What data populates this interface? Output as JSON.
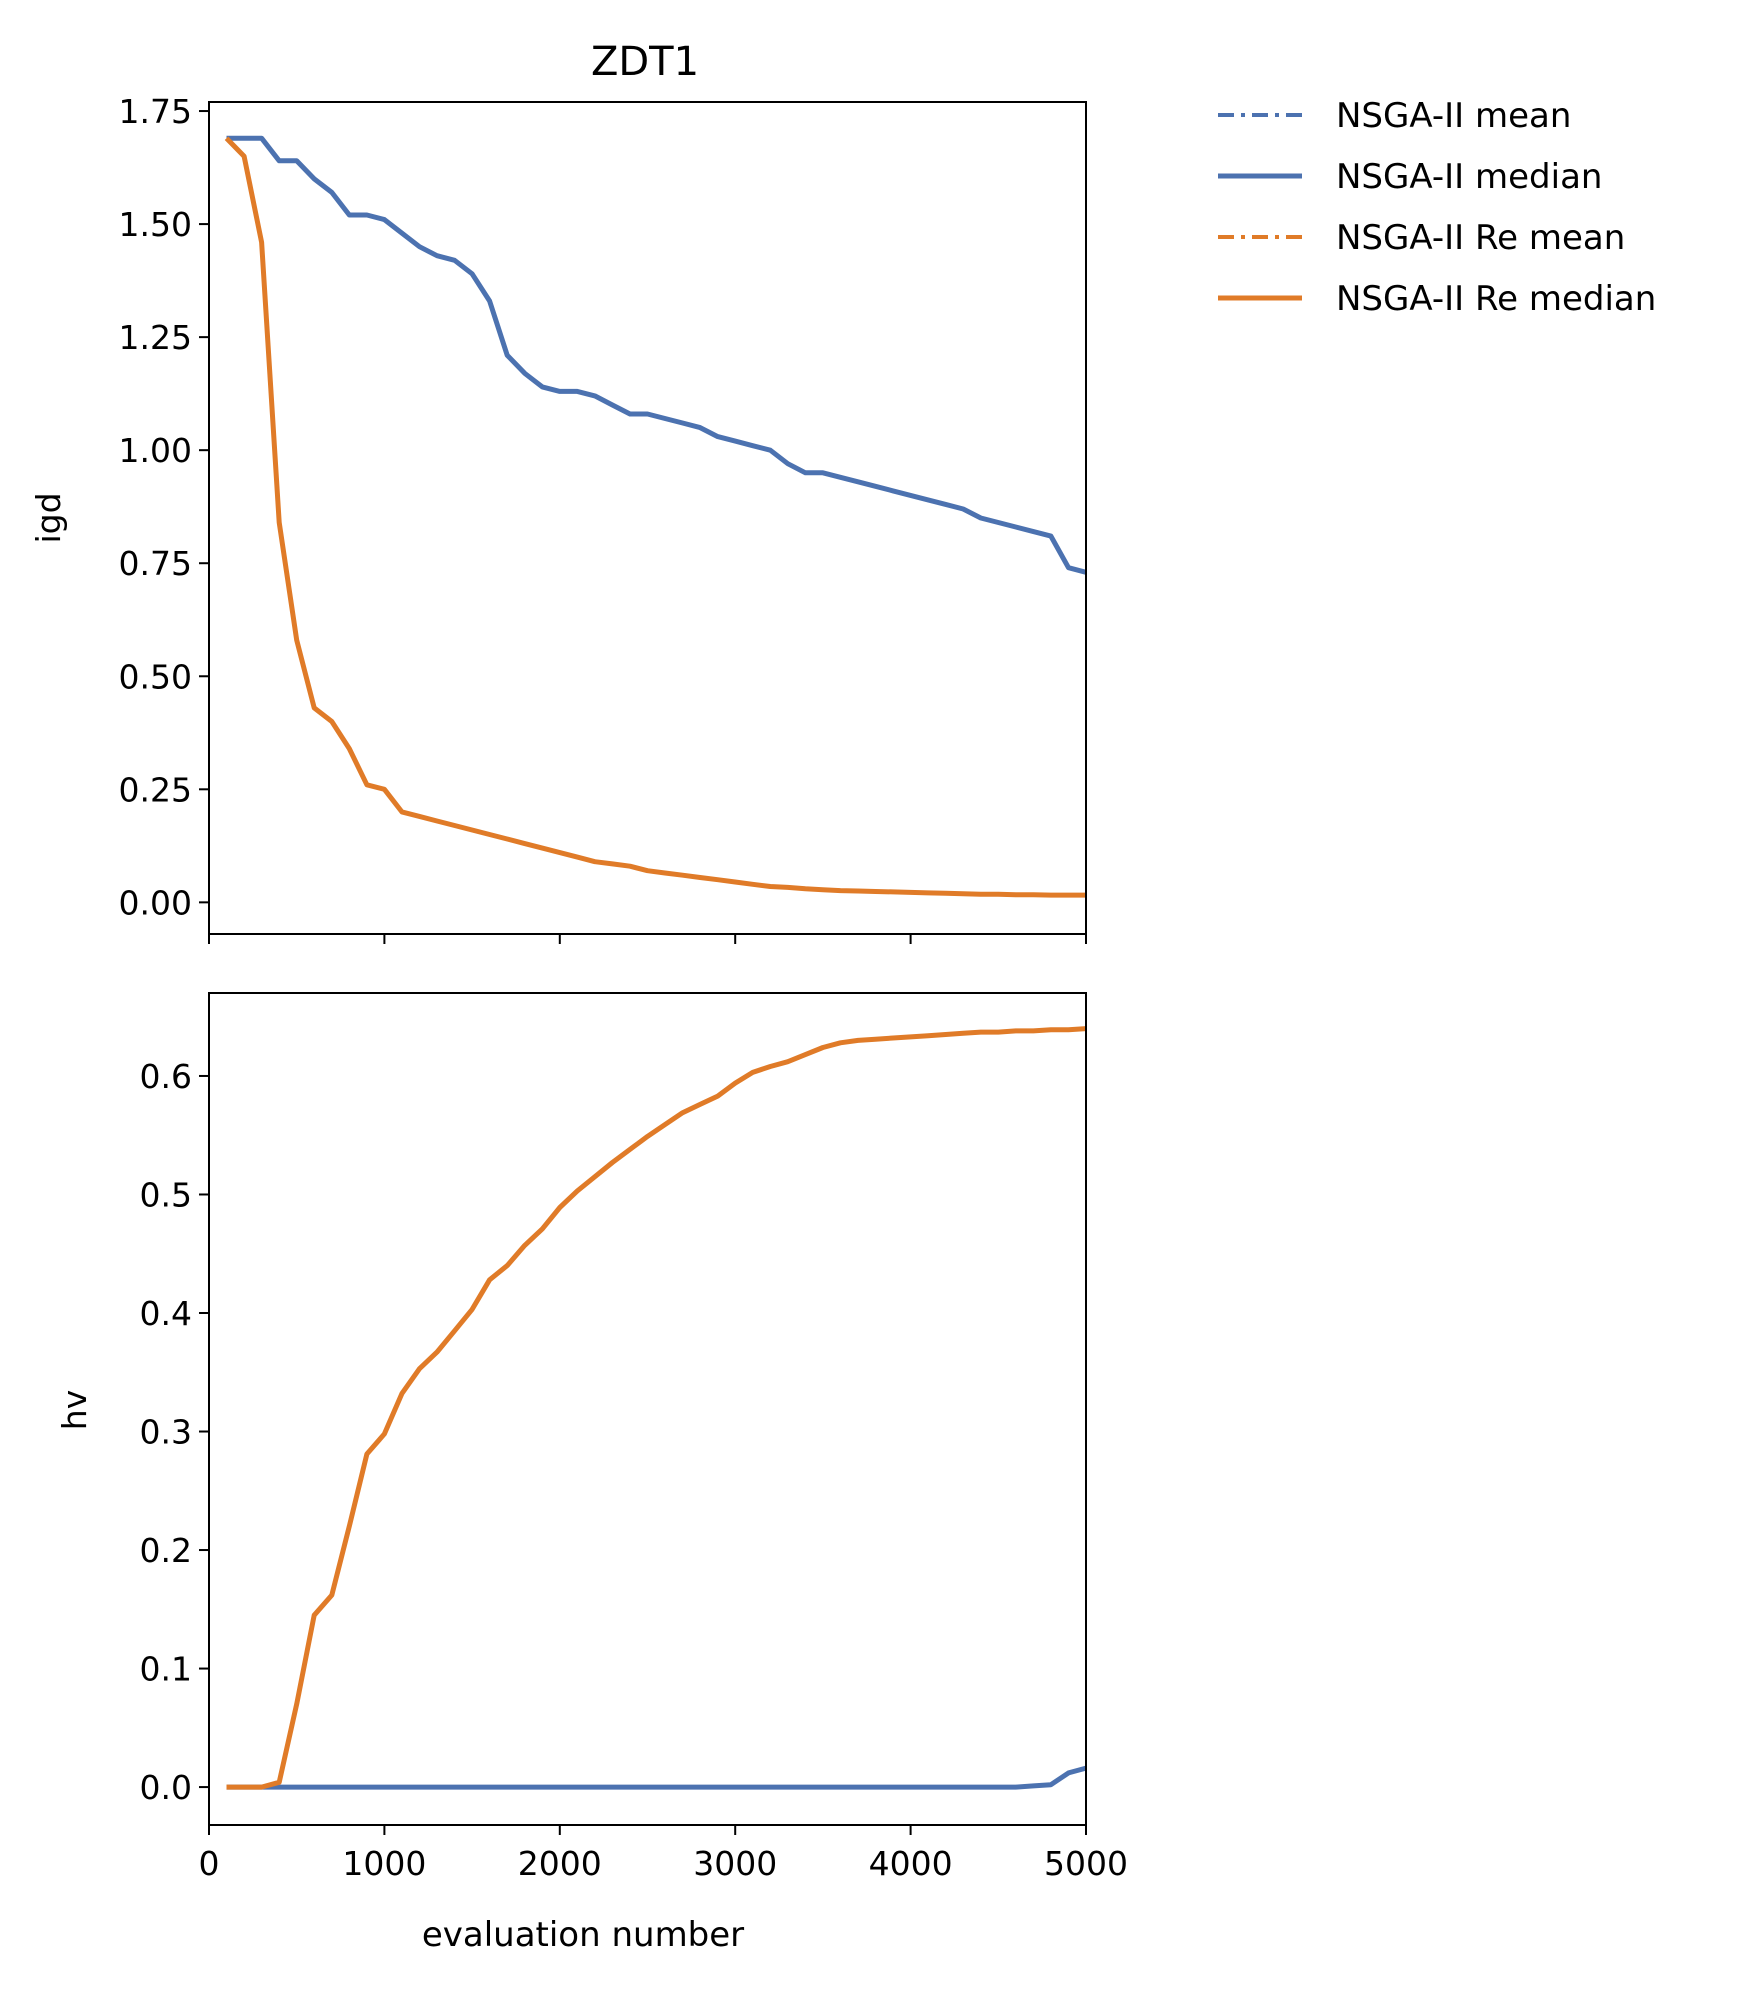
{
  "chart_data": [
    {
      "type": "line",
      "title": "ZDT1",
      "xlabel": "",
      "ylabel": "igd",
      "xlim": [
        0,
        5000
      ],
      "ylim": [
        -0.07,
        1.77
      ],
      "xticks": [
        0,
        1000,
        2000,
        3000,
        4000,
        5000
      ],
      "xtick_labels_shown": false,
      "yticks": [
        0.0,
        0.25,
        0.5,
        0.75,
        1.0,
        1.25,
        1.5,
        1.75
      ],
      "ytick_labels": [
        "0.00",
        "0.25",
        "0.50",
        "0.75",
        "1.00",
        "1.25",
        "1.50",
        "1.75"
      ],
      "grid": false,
      "series": [
        {
          "name": "NSGA-II median",
          "color": "#4c72b0",
          "x": [
            100,
            200,
            300,
            400,
            500,
            600,
            700,
            800,
            900,
            1000,
            1100,
            1200,
            1300,
            1400,
            1500,
            1600,
            1700,
            1800,
            1900,
            2000,
            2100,
            2200,
            2300,
            2400,
            2500,
            2600,
            2700,
            2800,
            2900,
            3000,
            3100,
            3200,
            3300,
            3400,
            3500,
            3600,
            3700,
            3800,
            3900,
            4000,
            4100,
            4200,
            4300,
            4400,
            4500,
            4600,
            4700,
            4800,
            4900,
            5000
          ],
          "y": [
            1.69,
            1.69,
            1.69,
            1.64,
            1.64,
            1.6,
            1.57,
            1.52,
            1.52,
            1.51,
            1.48,
            1.45,
            1.43,
            1.42,
            1.39,
            1.33,
            1.21,
            1.17,
            1.14,
            1.13,
            1.13,
            1.12,
            1.1,
            1.08,
            1.08,
            1.07,
            1.06,
            1.05,
            1.03,
            1.02,
            1.01,
            1.0,
            0.97,
            0.95,
            0.95,
            0.94,
            0.93,
            0.92,
            0.91,
            0.9,
            0.89,
            0.88,
            0.87,
            0.85,
            0.84,
            0.83,
            0.82,
            0.81,
            0.74,
            0.73
          ]
        },
        {
          "name": "NSGA-II Re median",
          "color": "#e07b28",
          "x": [
            100,
            200,
            300,
            400,
            500,
            600,
            700,
            800,
            900,
            1000,
            1100,
            1200,
            1300,
            1400,
            1500,
            1600,
            1700,
            1800,
            1900,
            2000,
            2100,
            2200,
            2300,
            2400,
            2500,
            2600,
            2700,
            2800,
            2900,
            3000,
            3100,
            3200,
            3300,
            3400,
            3500,
            3600,
            3700,
            3800,
            3900,
            4000,
            4100,
            4200,
            4300,
            4400,
            4500,
            4600,
            4700,
            4800,
            4900,
            5000
          ],
          "y": [
            1.69,
            1.65,
            1.46,
            0.84,
            0.58,
            0.43,
            0.4,
            0.34,
            0.26,
            0.25,
            0.2,
            0.19,
            0.18,
            0.17,
            0.16,
            0.15,
            0.14,
            0.13,
            0.12,
            0.11,
            0.1,
            0.09,
            0.085,
            0.08,
            0.07,
            0.065,
            0.06,
            0.055,
            0.05,
            0.045,
            0.04,
            0.035,
            0.033,
            0.03,
            0.028,
            0.026,
            0.025,
            0.024,
            0.023,
            0.022,
            0.021,
            0.02,
            0.019,
            0.018,
            0.018,
            0.017,
            0.017,
            0.016,
            0.016,
            0.016
          ]
        }
      ]
    },
    {
      "type": "line",
      "title": "",
      "xlabel": "evaluation number",
      "ylabel": "hv",
      "xlim": [
        0,
        5000
      ],
      "ylim": [
        -0.032,
        0.67
      ],
      "xticks": [
        0,
        1000,
        2000,
        3000,
        4000,
        5000
      ],
      "xtick_labels": [
        "0",
        "1000",
        "2000",
        "3000",
        "4000",
        "5000"
      ],
      "yticks": [
        0.0,
        0.1,
        0.2,
        0.3,
        0.4,
        0.5,
        0.6
      ],
      "ytick_labels": [
        "0.0",
        "0.1",
        "0.2",
        "0.3",
        "0.4",
        "0.5",
        "0.6"
      ],
      "grid": false,
      "series": [
        {
          "name": "NSGA-II median",
          "color": "#4c72b0",
          "x": [
            100,
            200,
            300,
            400,
            500,
            600,
            700,
            800,
            900,
            1000,
            1100,
            1200,
            1300,
            1400,
            1500,
            1600,
            1700,
            1800,
            1900,
            2000,
            2100,
            2200,
            2300,
            2400,
            2500,
            2600,
            2700,
            2800,
            2900,
            3000,
            3100,
            3200,
            3300,
            3400,
            3500,
            3600,
            3700,
            3800,
            3900,
            4000,
            4100,
            4200,
            4300,
            4400,
            4500,
            4600,
            4700,
            4800,
            4900,
            5000
          ],
          "y": [
            0,
            0,
            0,
            0,
            0,
            0,
            0,
            0,
            0,
            0,
            0,
            0,
            0,
            0,
            0,
            0,
            0,
            0,
            0,
            0,
            0,
            0,
            0,
            0,
            0,
            0,
            0,
            0,
            0,
            0,
            0,
            0,
            0,
            0,
            0,
            0,
            0,
            0,
            0,
            0,
            0,
            0,
            0,
            0,
            0,
            0,
            0.001,
            0.002,
            0.012,
            0.016
          ]
        },
        {
          "name": "NSGA-II Re median",
          "color": "#e07b28",
          "x": [
            100,
            200,
            300,
            400,
            500,
            600,
            700,
            800,
            900,
            1000,
            1100,
            1200,
            1300,
            1400,
            1500,
            1600,
            1700,
            1800,
            1900,
            2000,
            2100,
            2200,
            2300,
            2400,
            2500,
            2600,
            2700,
            2800,
            2900,
            3000,
            3100,
            3200,
            3300,
            3400,
            3500,
            3600,
            3700,
            3800,
            3900,
            4000,
            4100,
            4200,
            4300,
            4400,
            4500,
            4600,
            4700,
            4800,
            4900,
            5000
          ],
          "y": [
            0,
            0,
            0,
            0.004,
            0.07,
            0.145,
            0.162,
            0.22,
            0.281,
            0.298,
            0.332,
            0.353,
            0.367,
            0.385,
            0.403,
            0.428,
            0.44,
            0.457,
            0.471,
            0.489,
            0.503,
            0.515,
            0.527,
            0.538,
            0.549,
            0.559,
            0.569,
            0.576,
            0.583,
            0.594,
            0.603,
            0.608,
            0.612,
            0.618,
            0.624,
            0.628,
            0.63,
            0.631,
            0.632,
            0.633,
            0.634,
            0.635,
            0.636,
            0.637,
            0.637,
            0.638,
            0.638,
            0.639,
            0.639,
            0.64
          ]
        }
      ]
    }
  ],
  "legend": {
    "placement": "outside-right",
    "entries": [
      {
        "label": "NSGA-II mean",
        "color": "#4c72b0",
        "style": "dashdot"
      },
      {
        "label": "NSGA-II median",
        "color": "#4c72b0",
        "style": "solid"
      },
      {
        "label": "NSGA-II Re mean",
        "color": "#e07b28",
        "style": "dashdot"
      },
      {
        "label": "NSGA-II Re median",
        "color": "#e07b28",
        "style": "solid"
      }
    ]
  }
}
